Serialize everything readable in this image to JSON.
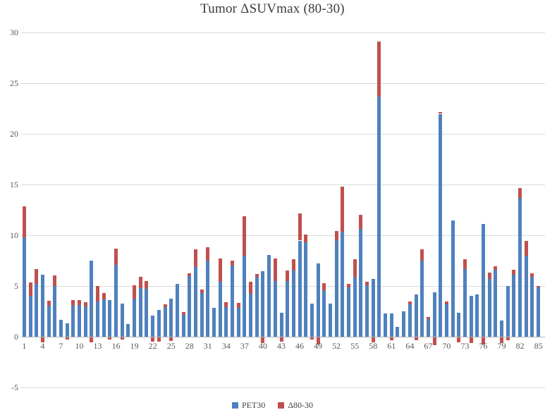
{
  "title": "Tumor ΔSUVmax (80-30)",
  "legend": {
    "items": [
      {
        "label": "PET30",
        "color": "#4F81BD"
      },
      {
        "label": "Δ80-30",
        "color": "#C0504D"
      }
    ]
  },
  "colors": {
    "pet30_blue": "#4F81BD",
    "delta_red": "#C0504D",
    "gridline": "#d9d9d9",
    "axis_line": "#b5b5b5",
    "tick_label": "#595959",
    "title_text": "#3b3b3b",
    "background": "#ffffff"
  },
  "chart_data": {
    "type": "bar",
    "stacked": true,
    "title": "Tumor ΔSUVmax (80-30)",
    "xlabel": "",
    "ylabel": "",
    "ylim": [
      -5,
      30
    ],
    "y_ticks": [
      30,
      25,
      20,
      15,
      10,
      5,
      0,
      -5
    ],
    "grid": "horizontal",
    "legend_position": "bottom",
    "categories": [
      1,
      2,
      3,
      4,
      5,
      6,
      7,
      8,
      9,
      10,
      11,
      12,
      13,
      14,
      15,
      16,
      17,
      18,
      19,
      20,
      21,
      22,
      23,
      24,
      25,
      26,
      27,
      28,
      29,
      30,
      31,
      32,
      33,
      34,
      35,
      36,
      37,
      38,
      39,
      40,
      41,
      42,
      43,
      44,
      45,
      46,
      47,
      48,
      49,
      50,
      51,
      52,
      53,
      54,
      55,
      56,
      57,
      58,
      59,
      60,
      61,
      62,
      63,
      64,
      65,
      66,
      67,
      68,
      69,
      70,
      71,
      72,
      73,
      74,
      75,
      76,
      77,
      78,
      79,
      80,
      81,
      82,
      83,
      84,
      85
    ],
    "x_tick_labels": [
      "1",
      "4",
      "7",
      "10",
      "13",
      "16",
      "19",
      "22",
      "25",
      "28",
      "31",
      "34",
      "37",
      "40",
      "43",
      "46",
      "49",
      "52",
      "55",
      "58",
      "61",
      "64",
      "67",
      "70",
      "73",
      "76",
      "79",
      "82",
      "85"
    ],
    "x_tick_step": 3,
    "series": [
      {
        "name": "PET30",
        "color": "#4F81BD",
        "values": [
          9.8,
          4.05,
          5.2,
          6.1,
          3.05,
          5.0,
          1.7,
          1.35,
          3.1,
          3.15,
          3.0,
          7.55,
          3.5,
          3.7,
          3.65,
          7.1,
          3.3,
          1.3,
          3.75,
          4.8,
          4.75,
          2.1,
          2.65,
          2.95,
          3.75,
          5.2,
          2.2,
          6.0,
          6.9,
          4.3,
          7.5,
          2.9,
          5.45,
          2.95,
          7.05,
          2.9,
          8.0,
          4.25,
          5.9,
          6.45,
          8.05,
          5.5,
          2.4,
          5.5,
          6.55,
          9.5,
          9.3,
          3.3,
          7.25,
          4.6,
          3.3,
          9.55,
          10.35,
          4.9,
          5.9,
          10.65,
          5.1,
          5.7,
          23.7,
          2.3,
          2.3,
          1.0,
          2.5,
          3.2,
          4.2,
          7.5,
          1.75,
          4.4,
          22.0,
          3.2,
          11.5,
          2.4,
          6.7,
          4.05,
          4.2,
          11.1,
          5.7,
          6.6,
          1.6,
          5.0,
          6.1,
          13.7,
          8.0,
          5.9,
          4.9
        ]
      },
      {
        "name": "Δ80-30",
        "color": "#C0504D",
        "values": [
          3.1,
          1.35,
          1.5,
          -0.5,
          0.5,
          1.05,
          0,
          -0.25,
          0.5,
          0.5,
          0.4,
          -0.5,
          1.55,
          0.6,
          -0.25,
          1.6,
          -0.25,
          0,
          1.35,
          1.15,
          0.75,
          -0.4,
          -0.45,
          0.3,
          -0.35,
          0,
          0.25,
          0.3,
          1.7,
          0.35,
          1.35,
          0,
          2.25,
          0.45,
          0.5,
          0.45,
          3.9,
          1.2,
          0.3,
          -0.55,
          0,
          2.2,
          -0.45,
          1.05,
          1.1,
          2.7,
          0.8,
          -0.25,
          -0.7,
          0.7,
          0,
          0.9,
          4.45,
          0.3,
          1.75,
          1.4,
          0.35,
          -0.5,
          5.4,
          0,
          -0.3,
          0,
          0,
          0.3,
          -0.3,
          1.1,
          0.25,
          -0.8,
          0.2,
          0.3,
          0,
          -0.5,
          0.95,
          -0.55,
          0,
          -0.7,
          0.65,
          0.35,
          -0.55,
          -0.3,
          0.55,
          0.95,
          1.5,
          0.35,
          0.15
        ]
      }
    ]
  },
  "layout_note": ""
}
